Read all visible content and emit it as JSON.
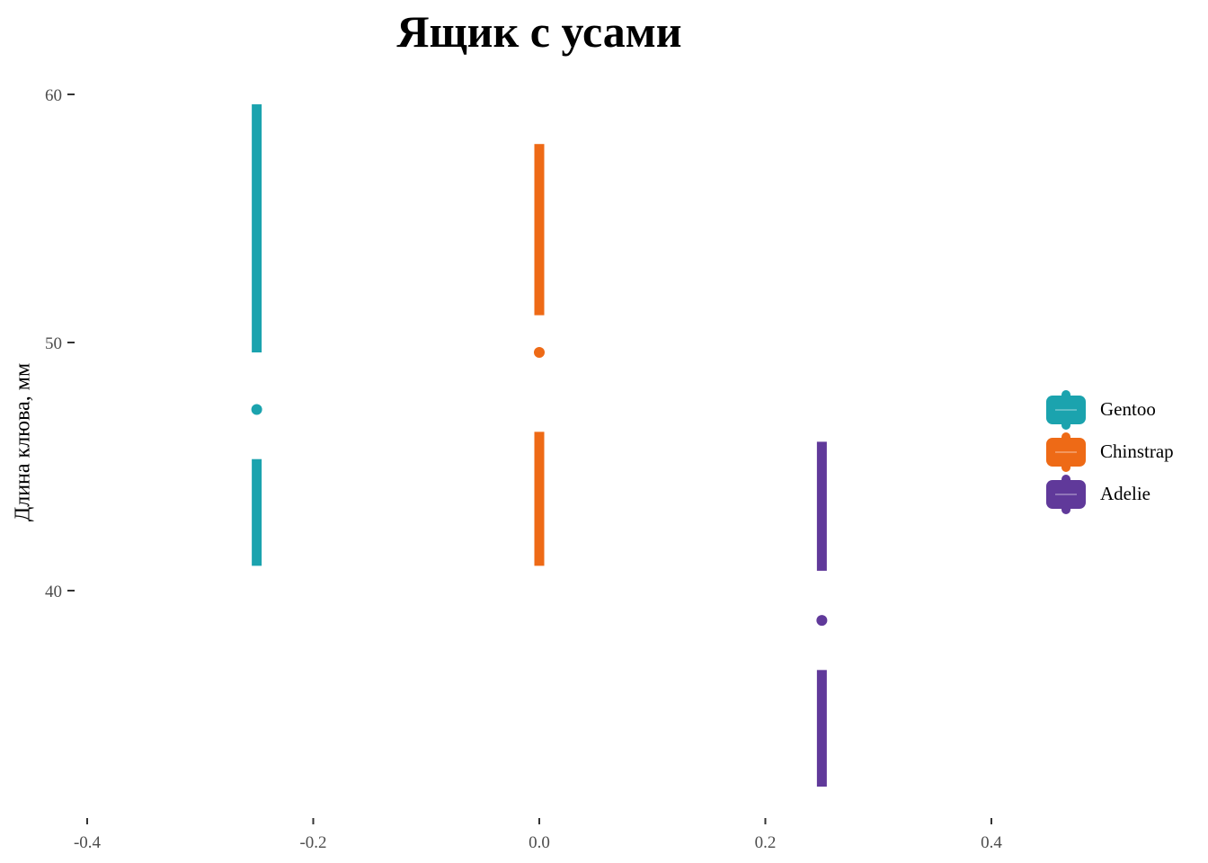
{
  "chart_data": {
    "type": "boxplot",
    "title": "Ящик с усами",
    "xlabel": "",
    "ylabel": "Длина клюва, мм",
    "xlim": [
      -0.4,
      0.4
    ],
    "ylim": [
      60,
      40
    ],
    "x_ticks": [
      "-0.4",
      "-0.2",
      "0.0",
      "0.2",
      "0.4"
    ],
    "y_ticks": [
      "60",
      "50",
      "40"
    ],
    "grid": false,
    "legend_position": "right",
    "series": [
      {
        "name": "Gentoo",
        "color": "#1BA3AE",
        "x": -0.25,
        "whisker_low": 41.0,
        "q1": 45.3,
        "median": 47.3,
        "q3": 49.6,
        "whisker_high": 59.6
      },
      {
        "name": "Chinstrap",
        "color": "#EE6A16",
        "x": 0.0,
        "whisker_low": 41.0,
        "q1": 46.4,
        "median": 49.6,
        "q3": 51.1,
        "whisker_high": 58.0
      },
      {
        "name": "Adelie",
        "color": "#60399A",
        "x": 0.25,
        "whisker_low": 32.1,
        "q1": 36.8,
        "median": 38.8,
        "q3": 40.8,
        "whisker_high": 46.0
      }
    ]
  }
}
